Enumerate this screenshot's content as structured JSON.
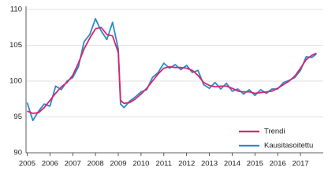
{
  "chart_data": {
    "type": "line",
    "x": [
      2005.0,
      2005.25,
      2005.5,
      2005.75,
      2006.0,
      2006.25,
      2006.5,
      2006.75,
      2007.0,
      2007.25,
      2007.5,
      2007.75,
      2008.0,
      2008.25,
      2008.5,
      2008.75,
      2009.0,
      2009.1,
      2009.25,
      2009.5,
      2009.75,
      2010.0,
      2010.25,
      2010.5,
      2010.75,
      2011.0,
      2011.25,
      2011.5,
      2011.75,
      2012.0,
      2012.25,
      2012.5,
      2012.75,
      2013.0,
      2013.25,
      2013.5,
      2013.75,
      2014.0,
      2014.25,
      2014.5,
      2014.75,
      2015.0,
      2015.25,
      2015.5,
      2015.75,
      2016.0,
      2016.25,
      2016.5,
      2016.75,
      2017.0,
      2017.25,
      2017.5,
      2017.7
    ],
    "series": [
      {
        "name": "Trendi",
        "color": "#d7246f",
        "values": [
          95.8,
          95.5,
          95.6,
          96.3,
          97.3,
          98.3,
          99.2,
          99.8,
          100.8,
          102.5,
          104.5,
          106.0,
          107.3,
          107.5,
          106.5,
          106.3,
          104.0,
          97.3,
          96.9,
          97.0,
          97.5,
          98.2,
          99.0,
          100.0,
          101.0,
          101.8,
          102.0,
          101.9,
          101.9,
          101.8,
          101.5,
          100.8,
          99.8,
          99.4,
          99.2,
          99.3,
          99.3,
          99.0,
          98.6,
          98.5,
          98.5,
          98.3,
          98.4,
          98.5,
          98.6,
          99.0,
          99.5,
          100.0,
          100.7,
          101.8,
          103.0,
          103.6,
          103.9
        ]
      },
      {
        "name": "Kausitasoitettu",
        "color": "#2a8ac8",
        "values": [
          97.0,
          94.5,
          95.8,
          96.8,
          96.5,
          99.3,
          98.8,
          100.0,
          100.5,
          102.0,
          105.5,
          106.5,
          108.7,
          107.0,
          105.8,
          108.2,
          104.5,
          96.8,
          96.3,
          97.2,
          97.8,
          98.5,
          98.8,
          100.5,
          101.2,
          102.5,
          101.8,
          102.3,
          101.6,
          102.2,
          101.2,
          101.5,
          99.5,
          99.0,
          99.8,
          98.9,
          99.7,
          98.6,
          98.9,
          98.2,
          98.8,
          98.0,
          98.8,
          98.3,
          98.9,
          98.9,
          99.8,
          100.1,
          100.5,
          101.5,
          103.4,
          103.3,
          103.8
        ]
      }
    ],
    "xlim": [
      2004.95,
      2018.0
    ],
    "xticks": [
      2005,
      2006,
      2007,
      2008,
      2009,
      2010,
      2011,
      2012,
      2013,
      2014,
      2015,
      2016,
      2017
    ],
    "ylim": [
      90,
      110
    ],
    "yticks": [
      90,
      95,
      100,
      105,
      110
    ],
    "grid": true,
    "legend": "lower right"
  }
}
